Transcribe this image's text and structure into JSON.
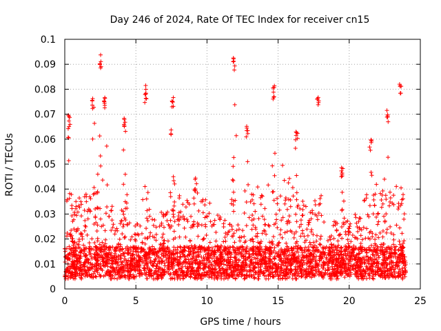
{
  "chart_data": {
    "type": "scatter",
    "title": "Day 246 of 2024, Rate Of TEC Index for receiver cn15",
    "xlabel": "GPS time / hours",
    "ylabel": "ROTI / TECUs",
    "xlim": [
      0,
      25
    ],
    "ylim": [
      0,
      0.1
    ],
    "xticks": [
      "0",
      "5",
      "10",
      "15",
      "20",
      "25"
    ],
    "yticks": [
      "0",
      "0.01",
      "0.02",
      "0.03",
      "0.04",
      "0.05",
      "0.06",
      "0.07",
      "0.08",
      "0.09",
      "0.1"
    ],
    "grid": true,
    "marker": "+",
    "series": [
      {
        "name": "ROTI",
        "color": "#ff0000",
        "x_range": [
          0,
          24
        ],
        "base_level": 0.01,
        "peaks": [
          {
            "x": 0.3,
            "y": 0.07
          },
          {
            "x": 2.0,
            "y": 0.078
          },
          {
            "x": 2.5,
            "y": 0.094
          },
          {
            "x": 2.8,
            "y": 0.078
          },
          {
            "x": 4.2,
            "y": 0.068
          },
          {
            "x": 5.7,
            "y": 0.082
          },
          {
            "x": 7.6,
            "y": 0.078
          },
          {
            "x": 9.2,
            "y": 0.045
          },
          {
            "x": 11.9,
            "y": 0.093
          },
          {
            "x": 12.8,
            "y": 0.066
          },
          {
            "x": 14.7,
            "y": 0.081
          },
          {
            "x": 16.3,
            "y": 0.064
          },
          {
            "x": 17.8,
            "y": 0.078
          },
          {
            "x": 19.5,
            "y": 0.05
          },
          {
            "x": 21.5,
            "y": 0.06
          },
          {
            "x": 22.7,
            "y": 0.072
          },
          {
            "x": 23.6,
            "y": 0.084
          }
        ]
      }
    ]
  }
}
